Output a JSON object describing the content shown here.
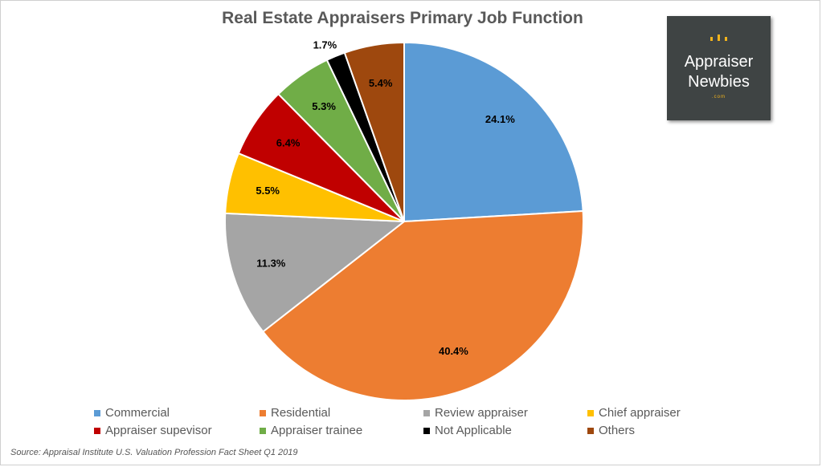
{
  "chart_data": {
    "type": "pie",
    "title": "Real Estate Appraisers Primary Job Function",
    "slices": [
      {
        "label": "Commercial",
        "value": 24.1,
        "display": "24.1%",
        "color": "#5b9bd5"
      },
      {
        "label": "Residential",
        "value": 40.4,
        "display": "40.4%",
        "color": "#ed7d31"
      },
      {
        "label": "Review appraiser",
        "value": 11.3,
        "display": "11.3%",
        "color": "#a5a5a5"
      },
      {
        "label": "Chief appraiser",
        "value": 5.5,
        "display": "5.5%",
        "color": "#ffc000"
      },
      {
        "label": "Appraiser supevisor",
        "value": 6.4,
        "display": "6.4%",
        "color": "#c00000"
      },
      {
        "label": "Appraiser trainee",
        "value": 5.3,
        "display": "5.3%",
        "color": "#70ad47"
      },
      {
        "label": "Not Applicable",
        "value": 1.7,
        "display": "1.7%",
        "color": "#000000"
      },
      {
        "label": "Others",
        "value": 5.4,
        "display": "5.4%",
        "color": "#9e480e"
      }
    ],
    "legend_position": "bottom"
  },
  "logo": {
    "line1": "Appraiser",
    "line2": "Newbies",
    "suffix": ".com"
  },
  "source": "Source: Appraisal Institute U.S. Valuation Profession Fact Sheet Q1 2019"
}
